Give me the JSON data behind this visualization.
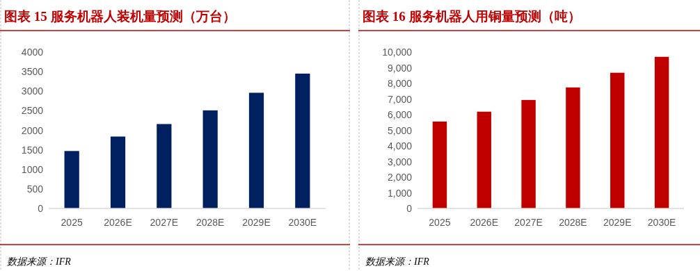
{
  "chart_data": [
    {
      "type": "bar",
      "title": "图表 15 服务机器人装机量预测（万台）",
      "categories": [
        "2025",
        "2026E",
        "2027E",
        "2028E",
        "2029E",
        "2030E"
      ],
      "values": [
        1470,
        1840,
        2160,
        2510,
        2960,
        3450
      ],
      "color": "#002060",
      "ylim": [
        0,
        4000
      ],
      "yticks": [
        0,
        500,
        1000,
        1500,
        2000,
        2500,
        3000,
        3500,
        4000
      ],
      "grid": false,
      "annotations": [
        "数据来源：IFR"
      ]
    },
    {
      "type": "bar",
      "title": "图表 16 服务机器人用铜量预测（吨）",
      "categories": [
        "2025",
        "2026E",
        "2027E",
        "2028E",
        "2029E",
        "2030E"
      ],
      "values": [
        5560,
        6190,
        6940,
        7740,
        8680,
        9700
      ],
      "color": "#c00000",
      "ylim": [
        0,
        10000
      ],
      "yticks": [
        0,
        {
          "value": 1000,
          "label": "1,000"
        },
        {
          "value": 2000,
          "label": "2,000"
        },
        {
          "value": 3000,
          "label": "3,000"
        },
        {
          "value": 4000,
          "label": "4,000"
        },
        {
          "value": 5000,
          "label": "5,000"
        },
        {
          "value": 6000,
          "label": "6,000"
        },
        {
          "value": 7000,
          "label": "7,000"
        },
        {
          "value": 8000,
          "label": "8,000"
        },
        {
          "value": 9000,
          "label": "9,000"
        },
        {
          "value": 10000,
          "label": "10,000"
        }
      ],
      "grid": false,
      "annotations": [
        "数据来源：IFR"
      ]
    }
  ]
}
